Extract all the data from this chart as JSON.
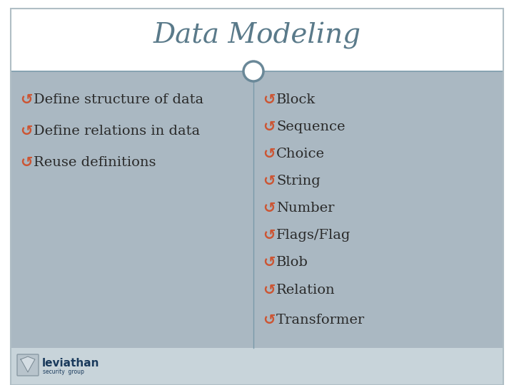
{
  "title": "Data Modeling",
  "title_color": "#5a7a8a",
  "title_fontsize": 28,
  "bg_color": "#ffffff",
  "content_bg": "#aab8c2",
  "divider_color": "#7a9aaa",
  "left_items": [
    "Define structure of data",
    "Define relations in data",
    "Reuse definitions"
  ],
  "right_items_group1": [
    "Block",
    "Sequence",
    "Choice",
    "String",
    "Number",
    "Flags/Flag",
    "Blob"
  ],
  "right_items_group2": [
    "Relation",
    "Transformer"
  ],
  "bullet_color": "#cc5533",
  "text_color": "#2a2a2a",
  "item_fontsize": 14,
  "footer_color": "#c8d4da",
  "header_line_color": "#7a9aaa",
  "circle_color": "#6a8898",
  "circle_bg": "#ffffff",
  "logo_text": "leviathan",
  "logo_subtext": "security  group",
  "logo_color": "#1a3a5c",
  "border_color": "#b0bec5"
}
